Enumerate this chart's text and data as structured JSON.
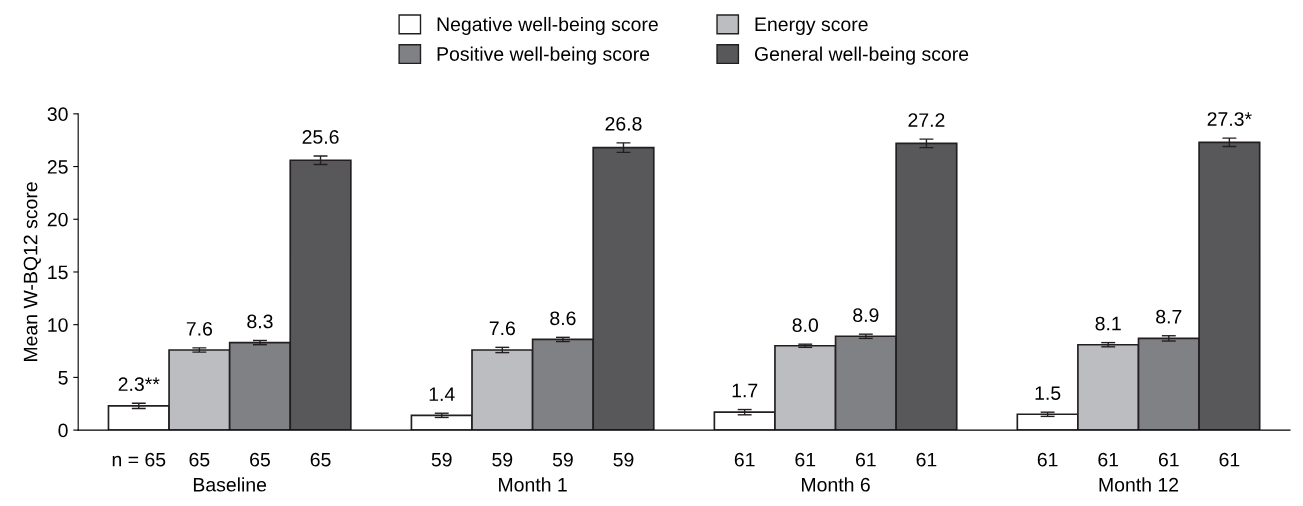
{
  "chart_data": {
    "type": "bar",
    "ylabel": "Mean W-BQ12 score",
    "categories": [
      "Baseline",
      "Month 1",
      "Month 6",
      "Month 12"
    ],
    "series": [
      {
        "name": "Negative well-being score",
        "color": "#ffffff",
        "values": [
          2.3,
          1.4,
          1.7,
          1.5
        ],
        "errors": [
          0.25,
          0.2,
          0.25,
          0.2
        ],
        "value_labels": [
          "2.3**",
          "1.4",
          "1.7",
          "1.5"
        ]
      },
      {
        "name": "Energy score",
        "color": "#bcbdc0",
        "values": [
          7.6,
          7.6,
          8.0,
          8.1
        ],
        "errors": [
          0.2,
          0.25,
          0.15,
          0.2
        ],
        "value_labels": [
          "7.6",
          "7.6",
          "8.0",
          "8.1"
        ]
      },
      {
        "name": "Positive well-being score",
        "color": "#808184",
        "values": [
          8.3,
          8.6,
          8.9,
          8.7
        ],
        "errors": [
          0.2,
          0.2,
          0.2,
          0.25
        ],
        "value_labels": [
          "8.3",
          "8.6",
          "8.9",
          "8.7"
        ]
      },
      {
        "name": "General well-being score",
        "color": "#58585a",
        "values": [
          25.6,
          26.8,
          27.2,
          27.3
        ],
        "errors": [
          0.4,
          0.45,
          0.4,
          0.4
        ],
        "value_labels": [
          "25.6",
          "26.8",
          "27.2",
          "27.3*"
        ]
      }
    ],
    "annotations": [
      "n = 65",
      "65",
      "65",
      "65",
      "59",
      "59",
      "59",
      "59",
      "61",
      "61",
      "61",
      "61",
      "61",
      "61",
      "61",
      "61"
    ],
    "ylim": [
      0,
      30
    ],
    "yticks": [
      0,
      5,
      10,
      15,
      20,
      25,
      30
    ],
    "grid": false,
    "legend": "top"
  }
}
